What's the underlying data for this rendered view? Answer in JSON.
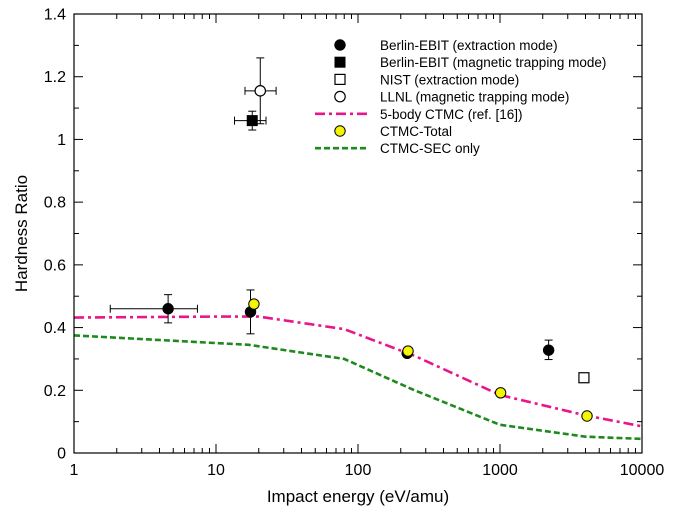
{
  "chart_data": {
    "type": "scatter",
    "title": "",
    "xlabel": "Impact energy (eV/amu)",
    "ylabel": "Hardness Ratio",
    "xscale": "log",
    "xlim": [
      1,
      10000
    ],
    "ylim": [
      0,
      1.4
    ],
    "x_ticks": [
      1,
      10,
      100,
      1000,
      10000
    ],
    "x_tick_labels": [
      "1",
      "10",
      "100",
      "1000",
      "10000"
    ],
    "y_ticks": [
      0,
      0.2,
      0.4,
      0.6,
      0.8,
      1,
      1.2,
      1.4
    ],
    "y_tick_labels": [
      "0",
      "0.2",
      "0.4",
      "0.6",
      "0.8",
      "1",
      "1.2",
      "1.4"
    ],
    "grid": false,
    "legend_position": "top-right",
    "series": [
      {
        "name": "Berlin-EBIT (extraction mode)",
        "kind": "points",
        "marker": "circle-filled",
        "color": "#000000",
        "points": [
          {
            "x": 4.6,
            "y": 0.46,
            "xerr": [
              1.8,
              7.4
            ],
            "yerr": [
              0.415,
              0.505
            ]
          },
          {
            "x": 17.5,
            "y": 0.45,
            "yerr": [
              0.38,
              0.52
            ]
          },
          {
            "x": 222,
            "y": 0.318
          },
          {
            "x": 2200,
            "y": 0.328,
            "yerr": [
              0.298,
              0.36
            ]
          }
        ]
      },
      {
        "name": "Berlin-EBIT (magnetic trapping mode)",
        "kind": "points",
        "marker": "square-filled",
        "color": "#000000",
        "points": [
          {
            "x": 18,
            "y": 1.06,
            "xerr": [
              13.5,
              22.5
            ],
            "yerr": [
              1.03,
              1.09
            ]
          }
        ]
      },
      {
        "name": "NIST (extraction mode)",
        "kind": "points",
        "marker": "square-open",
        "color": "#000000",
        "points": [
          {
            "x": 3900,
            "y": 0.24
          }
        ]
      },
      {
        "name": "LLNL (magnetic trapping mode)",
        "kind": "points",
        "marker": "circle-open",
        "color": "#000000",
        "points": [
          {
            "x": 20.5,
            "y": 1.155,
            "xerr": [
              16,
              26.5
            ],
            "yerr": [
              1.05,
              1.26
            ]
          }
        ]
      },
      {
        "name": "5-body CTMC (ref. [16])",
        "kind": "line",
        "dash": "dash-dot",
        "color": "#e8168a",
        "points": [
          {
            "x": 1,
            "y": 0.432
          },
          {
            "x": 10,
            "y": 0.435
          },
          {
            "x": 20,
            "y": 0.435
          },
          {
            "x": 80,
            "y": 0.395
          },
          {
            "x": 250,
            "y": 0.31
          },
          {
            "x": 1000,
            "y": 0.185
          },
          {
            "x": 4000,
            "y": 0.12
          },
          {
            "x": 10000,
            "y": 0.085
          }
        ]
      },
      {
        "name": "CTMC-Total",
        "kind": "points",
        "marker": "circle-yellow",
        "color": "#f5f500",
        "points": [
          {
            "x": 18.5,
            "y": 0.475
          },
          {
            "x": 225,
            "y": 0.325
          },
          {
            "x": 1010,
            "y": 0.192
          },
          {
            "x": 4100,
            "y": 0.118
          }
        ]
      },
      {
        "name": "CTMC-SEC only",
        "kind": "line",
        "dash": "dashed",
        "color": "#1d8a1d",
        "points": [
          {
            "x": 1,
            "y": 0.375
          },
          {
            "x": 17,
            "y": 0.345
          },
          {
            "x": 80,
            "y": 0.3
          },
          {
            "x": 250,
            "y": 0.2
          },
          {
            "x": 1000,
            "y": 0.09
          },
          {
            "x": 4000,
            "y": 0.052
          },
          {
            "x": 10000,
            "y": 0.045
          }
        ]
      }
    ]
  }
}
